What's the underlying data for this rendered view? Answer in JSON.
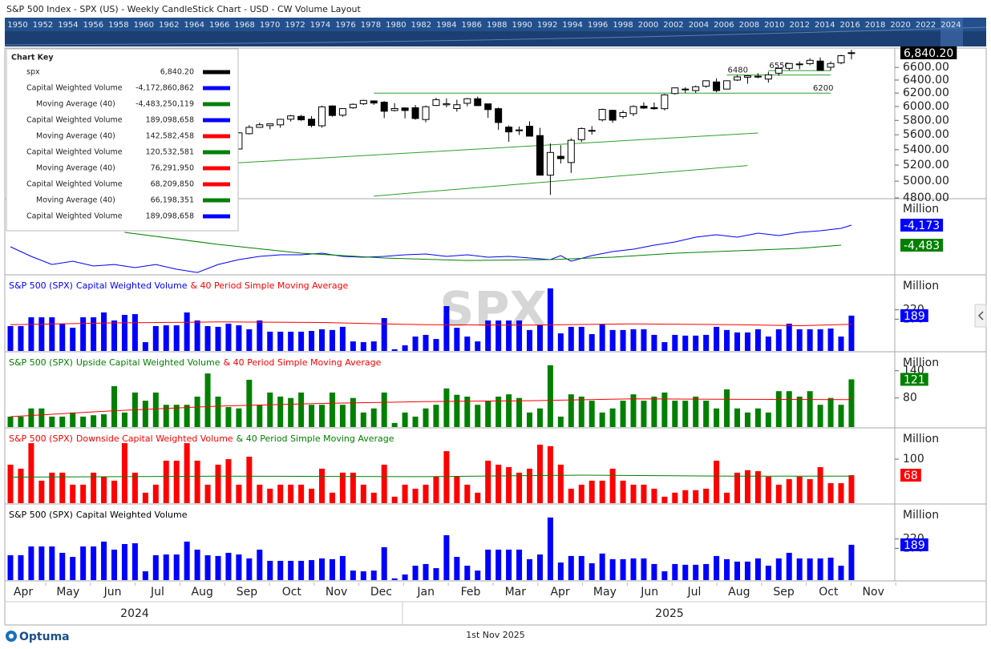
{
  "header": "S&P 500 Index - SPX (US) - Weekly CandleStick Chart - USD - CW Volume Layout",
  "timeline_years": [
    "1950",
    "1952",
    "1954",
    "1956",
    "1958",
    "1960",
    "1962",
    "1964",
    "1966",
    "1968",
    "1970",
    "1972",
    "1974",
    "1976",
    "1978",
    "1980",
    "1982",
    "1984",
    "1986",
    "1988",
    "1990",
    "1992",
    "1994",
    "1996",
    "1998",
    "2000",
    "2002",
    "2004",
    "2006",
    "2008",
    "2010",
    "2012",
    "2014",
    "2016",
    "2018",
    "2020",
    "2022",
    "2024"
  ],
  "watermark": "SPX",
  "chart_key": {
    "title": "Chart Key",
    "rows": [
      {
        "name": "spx",
        "value": "6,840.20",
        "color": "#000000"
      },
      {
        "name": "Capital Weighted Volume",
        "value": "-4,172,860,862",
        "color": "#0000ff"
      },
      {
        "name": "Moving Average (40)",
        "value": "-4,483,250,119",
        "color": "#008000"
      },
      {
        "name": "Capital Weighted Volume",
        "value": "189,098,658",
        "color": "#0000ff"
      },
      {
        "name": "Moving Average (40)",
        "value": "142,582,458",
        "color": "#ff0000"
      },
      {
        "name": "Capital Weighted Volume",
        "value": "120,532,581",
        "color": "#008000"
      },
      {
        "name": "Moving Average (40)",
        "value": "76,291,950",
        "color": "#ff0000"
      },
      {
        "name": "Capital Weighted Volume",
        "value": "68,209,850",
        "color": "#ff0000"
      },
      {
        "name": "Moving Average (40)",
        "value": "66,198,351",
        "color": "#008000"
      },
      {
        "name": "Capital Weighted Volume",
        "value": "189,098,658",
        "color": "#0000ff"
      }
    ]
  },
  "chart_data": [
    {
      "type": "candlestick",
      "log": true,
      "ylim": [
        4800,
        6920
      ],
      "yticks": [
        {
          "value": 6600,
          "label": "6600.00"
        },
        {
          "value": 6400,
          "label": "6400.00"
        },
        {
          "value": 6200,
          "label": "6200.00"
        },
        {
          "value": 6000,
          "label": "6000.00"
        },
        {
          "value": 5800,
          "label": "5800.00"
        },
        {
          "value": 5600,
          "label": "5600.00"
        },
        {
          "value": 5400,
          "label": "5400.00"
        },
        {
          "value": 5200,
          "label": "5200.00"
        },
        {
          "value": 5000,
          "label": "5000.00"
        },
        {
          "value": 4800,
          "label": "4800.00"
        }
      ],
      "up_color": "#ffffff",
      "down_color": "#000000",
      "last_label": "6,840.20",
      "open": [
        null,
        null,
        null,
        null,
        null,
        null,
        null,
        null,
        null,
        null,
        null,
        null,
        null,
        null,
        null,
        null,
        null,
        null,
        null,
        null,
        null,
        null,
        5409,
        5615,
        5702,
        5726,
        5737,
        5817,
        5857,
        5817,
        5724,
        6008,
        5874,
        5981,
        6040,
        6083,
        6063,
        5942,
        5979,
        5982,
        5812,
        6015,
        6025,
        5970,
        6047,
        6115,
        6039,
        5968,
        5706,
        5655,
        5718,
        5589,
        5074,
        5313,
        5233,
        5534,
        5655,
        5808,
        5945,
        5855,
        5896,
        6004,
        5984,
        5968,
        6193,
        6261,
        6238,
        6304,
        6371,
        6261,
        6400,
        6445,
        6457,
        6416,
        6508,
        6586,
        6657,
        6661,
        6704,
        6604,
        6676,
        6842
      ],
      "high": [
        null,
        null,
        null,
        null,
        null,
        null,
        null,
        null,
        null,
        null,
        null,
        null,
        null,
        null,
        null,
        null,
        null,
        null,
        null,
        null,
        null,
        null,
        5636,
        5733,
        5767,
        5757,
        5822,
        5878,
        5878,
        5862,
        6012,
        6018,
        5973,
        6045,
        6099,
        6085,
        6079,
        6050,
        5988,
        6022,
        6014,
        6128,
        6120,
        6101,
        6127,
        6147,
        6043,
        5986,
        5729,
        5715,
        5787,
        5695,
        5482,
        5459,
        5551,
        5700,
        5720,
        5969,
        5953,
        5944,
        6017,
        6060,
        6059,
        6187,
        6285,
        6290,
        6315,
        6395,
        6427,
        6395,
        6481,
        6467,
        6509,
        6532,
        6600,
        6672,
        6699,
        6750,
        6764,
        6700,
        6807,
        6890
      ],
      "low": [
        null,
        null,
        null,
        null,
        null,
        null,
        null,
        null,
        null,
        null,
        null,
        null,
        null,
        null,
        null,
        null,
        null,
        null,
        null,
        null,
        null,
        null,
        5406,
        5604,
        5698,
        5674,
        5696,
        5784,
        5794,
        5703,
        5697,
        5853,
        5850,
        5966,
        6023,
        6024,
        5832,
        5927,
        5829,
        5809,
        5773,
        6008,
        5989,
        5924,
        6003,
        6008,
        5837,
        5667,
        5505,
        5597,
        5581,
        5069,
        4835,
        5220,
        5102,
        5501,
        5603,
        5786,
        5767,
        5826,
        5861,
        5963,
        5952,
        5944,
        6177,
        6201,
        6201,
        6281,
        6212,
        6257,
        6385,
        6343,
        6429,
        6360,
        6469,
        6551,
        6569,
        6637,
        6550,
        6549,
        6653,
        6732
      ],
      "close": [
        null,
        null,
        null,
        null,
        null,
        null,
        null,
        null,
        null,
        null,
        null,
        null,
        null,
        null,
        null,
        null,
        null,
        null,
        null,
        null,
        null,
        null,
        5626,
        5702,
        5738,
        5751,
        5815,
        5864,
        5808,
        5729,
        5995,
        5870,
        5969,
        6032,
        6090,
        6051,
        5931,
        5970,
        5942,
        5827,
        5997,
        6101,
        6040,
        6026,
        6115,
        6013,
        5955,
        5770,
        5639,
        5667,
        5581,
        5074,
        5363,
        5283,
        5525,
        5686,
        5660,
        5958,
        5803,
        5912,
        6000,
        5977,
        5968,
        6173,
        6279,
        6260,
        6297,
        6389,
        6238,
        6389,
        6450,
        6467,
        6460,
        6482,
        6584,
        6664,
        6644,
        6716,
        6553,
        6664,
        6792,
        6840.2
      ],
      "lines": [
        {
          "color": "#2e9e2e",
          "x": [
            21,
            72
          ],
          "values": [
            5222,
            5624
          ]
        },
        {
          "color": "#2e9e2e",
          "x": [
            35,
            71
          ],
          "values": [
            4822,
            5195
          ]
        },
        {
          "color": "#2e9e2e",
          "x": [
            35,
            79
          ],
          "values": [
            6200,
            6200
          ]
        },
        {
          "color": "#2e9e2e",
          "x": [
            69,
            79
          ],
          "values": [
            6480,
            6480
          ]
        },
        {
          "color": "#2e9e2e",
          "x": [
            73,
            79
          ],
          "values": [
            6550,
            6550
          ]
        }
      ]
    },
    {
      "type": "line",
      "unit": "Million",
      "ylim": [
        -4929,
        -3789
      ],
      "title_parts": [
        {
          "text": "& 40 Period Simple Moving Average",
          "color": "#008000"
        }
      ],
      "series": [
        {
          "color": "#0000ff",
          "last_label": "-4,173",
          "x": [
            0,
            2,
            4,
            6,
            8,
            10,
            12,
            14,
            16,
            18,
            20,
            22,
            24,
            26,
            28,
            30,
            32,
            34,
            36,
            38,
            40,
            42,
            44,
            46,
            48,
            50,
            52,
            53,
            54,
            56,
            58,
            60,
            62,
            64,
            66,
            68,
            70,
            72,
            74,
            76,
            78,
            80,
            81
          ],
          "values": [
            -4508,
            -4657,
            -4781,
            -4731,
            -4805,
            -4781,
            -4830,
            -4781,
            -4855,
            -4905,
            -4781,
            -4706,
            -4657,
            -4632,
            -4632,
            -4607,
            -4657,
            -4669,
            -4657,
            -4632,
            -4619,
            -4657,
            -4632,
            -4669,
            -4657,
            -4681,
            -4706,
            -4644,
            -4731,
            -4644,
            -4582,
            -4545,
            -4483,
            -4433,
            -4359,
            -4322,
            -4359,
            -4297,
            -4334,
            -4285,
            -4260,
            -4223,
            -4173
          ]
        },
        {
          "color": "#008000",
          "last_label": "-4,483",
          "x": [
            11,
            20,
            28,
            36,
            44,
            52,
            58,
            64,
            70,
            76,
            80
          ],
          "values": [
            -4285,
            -4471,
            -4607,
            -4681,
            -4719,
            -4706,
            -4669,
            -4607,
            -4570,
            -4533,
            -4483
          ]
        }
      ]
    },
    {
      "type": "bar",
      "unit": "Million",
      "ylim": [
        0,
        403
      ],
      "yticks": [
        170,
        220
      ],
      "color": "#0000ff",
      "title_parts": [
        {
          "text": "S&P 500 (SPX)",
          "color": "#0000ff"
        },
        {
          "text": "Capital Weighted Volume",
          "color": "#0000ff"
        },
        {
          "text": "& 40 Period Simple Moving Average",
          "color": "#ff0000"
        }
      ],
      "values": [
        133,
        133,
        180,
        180,
        180,
        146,
        124,
        180,
        180,
        206,
        163,
        193,
        197,
        47,
        133,
        137,
        137,
        206,
        163,
        133,
        129,
        146,
        137,
        116,
        163,
        103,
        103,
        103,
        103,
        107,
        116,
        112,
        129,
        51,
        47,
        51,
        176,
        9,
        30,
        77,
        86,
        64,
        240,
        124,
        77,
        51,
        163,
        163,
        163,
        163,
        112,
        137,
        335,
        94,
        129,
        129,
        90,
        142,
        112,
        112,
        116,
        116,
        86,
        47,
        86,
        82,
        82,
        86,
        129,
        112,
        99,
        99,
        116,
        77,
        116,
        146,
        116,
        116,
        116,
        120,
        77,
        189
      ],
      "ma": {
        "color": "#ff0000",
        "x": [
          0,
          10,
          20,
          30,
          40,
          50,
          60,
          70,
          76,
          81
        ],
        "values": [
          140,
          150,
          155,
          152,
          140,
          138,
          145,
          140,
          135,
          142.6
        ]
      }
    },
    {
      "type": "bar",
      "unit": "Million",
      "ylim": [
        16,
        180
      ],
      "yticks": [
        80,
        140
      ],
      "color": "#008000",
      "title_parts": [
        {
          "text": "S&P 500 (SPX)",
          "color": "#008000"
        },
        {
          "text": "Upside Capital Weighted Volume",
          "color": "#008000"
        },
        {
          "text": "& 40 Period Simple Moving Average",
          "color": "#ff0000"
        }
      ],
      "values": [
        39,
        39,
        57,
        57,
        39,
        39,
        48,
        39,
        42,
        44,
        106,
        48,
        92,
        74,
        92,
        65,
        65,
        65,
        83,
        134,
        83,
        60,
        57,
        120,
        65,
        92,
        83,
        80,
        92,
        65,
        65,
        92,
        65,
        80,
        48,
        57,
        92,
        25,
        48,
        39,
        57,
        65,
        101,
        87,
        83,
        65,
        74,
        83,
        88,
        80,
        48,
        57,
        152,
        39,
        88,
        83,
        74,
        48,
        57,
        74,
        88,
        74,
        83,
        92,
        74,
        74,
        83,
        74,
        57,
        99,
        57,
        48,
        57,
        48,
        95,
        95,
        83,
        95,
        65,
        80,
        65,
        121
      ],
      "ma": {
        "color": "#ff0000",
        "x": [
          0,
          10,
          20,
          30,
          40,
          50,
          60,
          70,
          81
        ],
        "values": [
          39,
          52,
          62,
          68,
          72,
          74,
          78,
          77,
          76.29
        ]
      }
    },
    {
      "type": "bar",
      "unit": "Million",
      "ylim": [
        12,
        161
      ],
      "yticks": [
        100
      ],
      "color": "#ff0000",
      "title_parts": [
        {
          "text": "S&P 500 (SPX)",
          "color": "#ff0000"
        },
        {
          "text": "Downside Capital Weighted Volume",
          "color": "#ff0000"
        },
        {
          "text": "& 40 Period Simple Moving Average",
          "color": "#008000"
        }
      ],
      "values": [
        89,
        81,
        132,
        57,
        73,
        73,
        49,
        49,
        73,
        65,
        57,
        132,
        73,
        33,
        49,
        97,
        97,
        132,
        97,
        49,
        89,
        100,
        49,
        105,
        49,
        41,
        49,
        49,
        49,
        41,
        81,
        33,
        73,
        73,
        49,
        33,
        89,
        25,
        49,
        41,
        49,
        65,
        116,
        65,
        49,
        33,
        97,
        89,
        84,
        73,
        81,
        129,
        126,
        89,
        41,
        49,
        57,
        57,
        81,
        57,
        49,
        49,
        41,
        25,
        33,
        38,
        38,
        41,
        97,
        33,
        73,
        78,
        76,
        65,
        49,
        60,
        65,
        60,
        84,
        52,
        52,
        68
      ],
      "ma": {
        "color": "#008000",
        "x": [
          0,
          20,
          40,
          55,
          70,
          81
        ],
        "values": [
          64,
          66,
          65,
          68,
          66,
          66.2
        ]
      }
    },
    {
      "type": "bar",
      "unit": "Million",
      "ylim": [
        0,
        403
      ],
      "yticks": [
        170,
        220
      ],
      "color": "#0000ff",
      "title_parts": [
        {
          "text": "S&P 500 (SPX)",
          "color": "#000000"
        },
        {
          "text": "Capital Weighted Volume",
          "color": "#000000"
        }
      ],
      "values": [
        133,
        133,
        180,
        180,
        180,
        146,
        124,
        180,
        180,
        206,
        163,
        193,
        197,
        47,
        133,
        137,
        137,
        206,
        163,
        133,
        129,
        146,
        137,
        116,
        163,
        103,
        103,
        103,
        103,
        107,
        116,
        112,
        129,
        51,
        47,
        51,
        176,
        9,
        30,
        77,
        86,
        64,
        240,
        124,
        77,
        51,
        163,
        163,
        163,
        163,
        112,
        137,
        335,
        94,
        129,
        129,
        90,
        142,
        112,
        112,
        116,
        116,
        86,
        47,
        86,
        82,
        82,
        86,
        129,
        112,
        99,
        99,
        116,
        77,
        116,
        146,
        116,
        116,
        116,
        120,
        77,
        189
      ]
    }
  ],
  "x_axis": {
    "months": [
      "Apr",
      "May",
      "Jun",
      "Jul",
      "Aug",
      "Sep",
      "Oct",
      "Nov",
      "Dec",
      "Jan",
      "Feb",
      "Mar",
      "Apr",
      "May",
      "Jun",
      "Jul",
      "Aug",
      "Sep",
      "Oct",
      "Nov"
    ],
    "years": [
      "2024",
      "2025"
    ]
  },
  "footer": {
    "logo": "Optuma",
    "date": "1st Nov 2025"
  }
}
